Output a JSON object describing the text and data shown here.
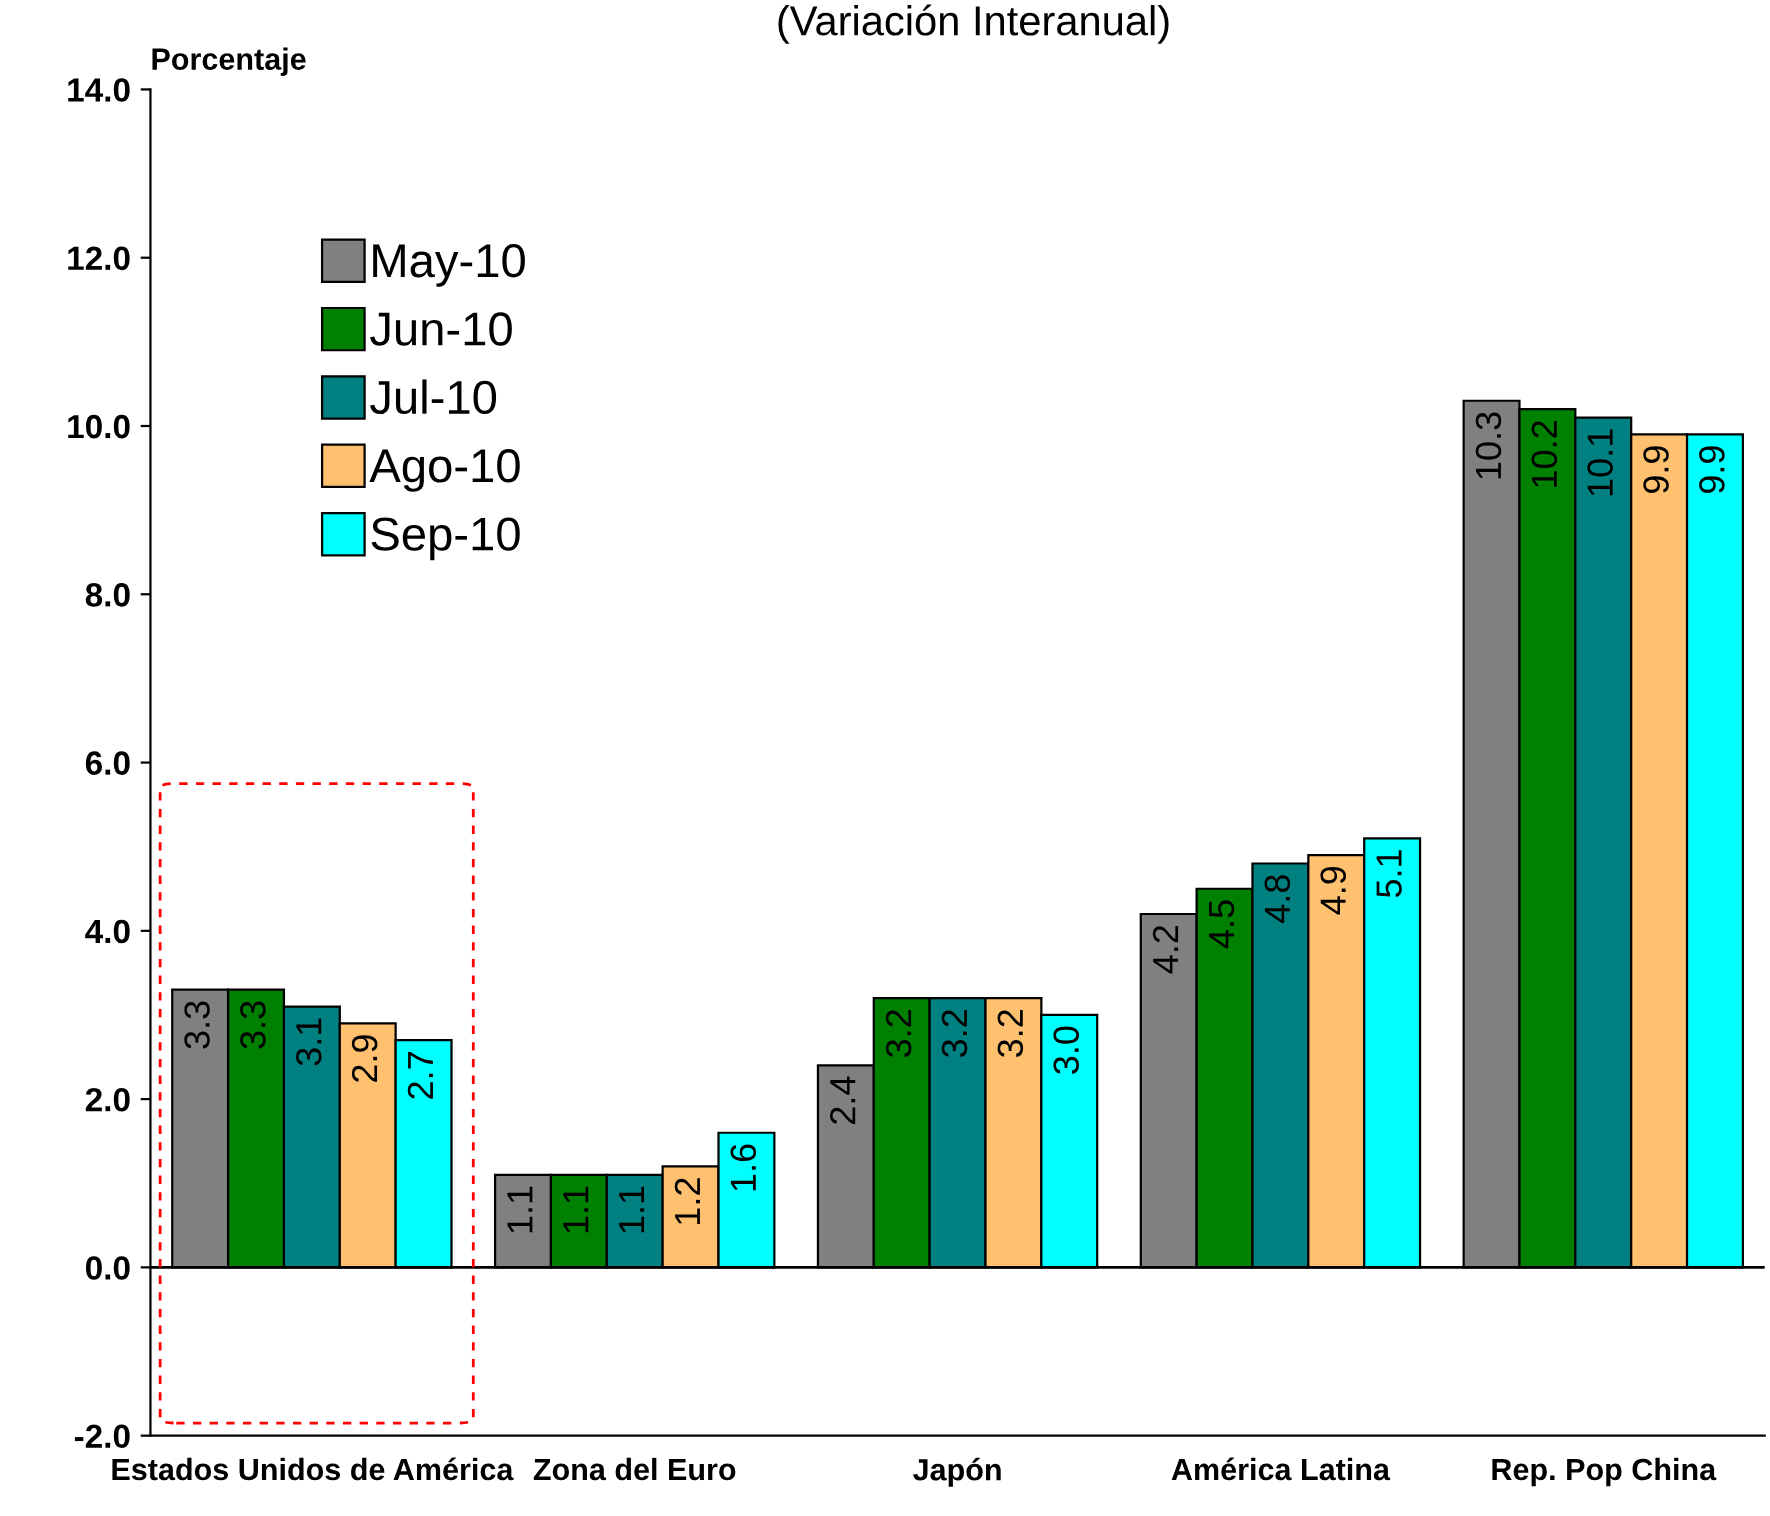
{
  "chart_data": {
    "type": "bar",
    "title": "(Variación Interanual)",
    "ylabel": "Porcentaje",
    "categories": [
      "Estados Unidos de América",
      "Zona del Euro",
      "Japón",
      "América Latina",
      "Rep. Pop China"
    ],
    "series": [
      {
        "name": "May-10",
        "color": "#808080",
        "values": [
          3.3,
          1.1,
          2.4,
          4.2,
          10.3
        ]
      },
      {
        "name": "Jun-10",
        "color": "#008000",
        "values": [
          3.3,
          1.1,
          3.2,
          4.5,
          10.2
        ]
      },
      {
        "name": "Jul-10",
        "color": "#008080",
        "values": [
          3.1,
          1.1,
          3.2,
          4.8,
          10.1
        ]
      },
      {
        "name": "Ago-10",
        "color": "#ffc06f",
        "values": [
          2.9,
          1.2,
          3.2,
          4.9,
          9.9
        ]
      },
      {
        "name": "Sep-10",
        "color": "#00ffff",
        "values": [
          2.7,
          1.6,
          3.0,
          5.1,
          9.9
        ]
      }
    ],
    "ylim": [
      -2,
      14
    ],
    "yticks": [
      {
        "value": -2,
        "label": "-2.0"
      },
      {
        "value": 0,
        "label": "0.0"
      },
      {
        "value": 2,
        "label": "2.0"
      },
      {
        "value": 4,
        "label": "4.0"
      },
      {
        "value": 6,
        "label": "6.0"
      },
      {
        "value": 8,
        "label": "8.0"
      },
      {
        "value": 10,
        "label": "10.0"
      },
      {
        "value": 12,
        "label": "12.0"
      },
      {
        "value": 14,
        "label": "14.0"
      }
    ],
    "ref_lines": [
      {
        "axis": "y",
        "value": 0,
        "color": "#000000"
      }
    ],
    "value_labels": [
      [
        "3.3",
        "1.1",
        "2.4",
        "4.2",
        "10.3"
      ],
      [
        "3.3",
        "1.1",
        "3.2",
        "4.5",
        "10.2"
      ],
      [
        "3.1",
        "1.1",
        "3.2",
        "4.8",
        "10.1"
      ],
      [
        "2.9",
        "1.2",
        "3.2",
        "4.9",
        "9.9"
      ],
      [
        "2.7",
        "1.6",
        "3.0",
        "5.1",
        "9.9"
      ]
    ],
    "grid": false,
    "legend": "top left"
  }
}
